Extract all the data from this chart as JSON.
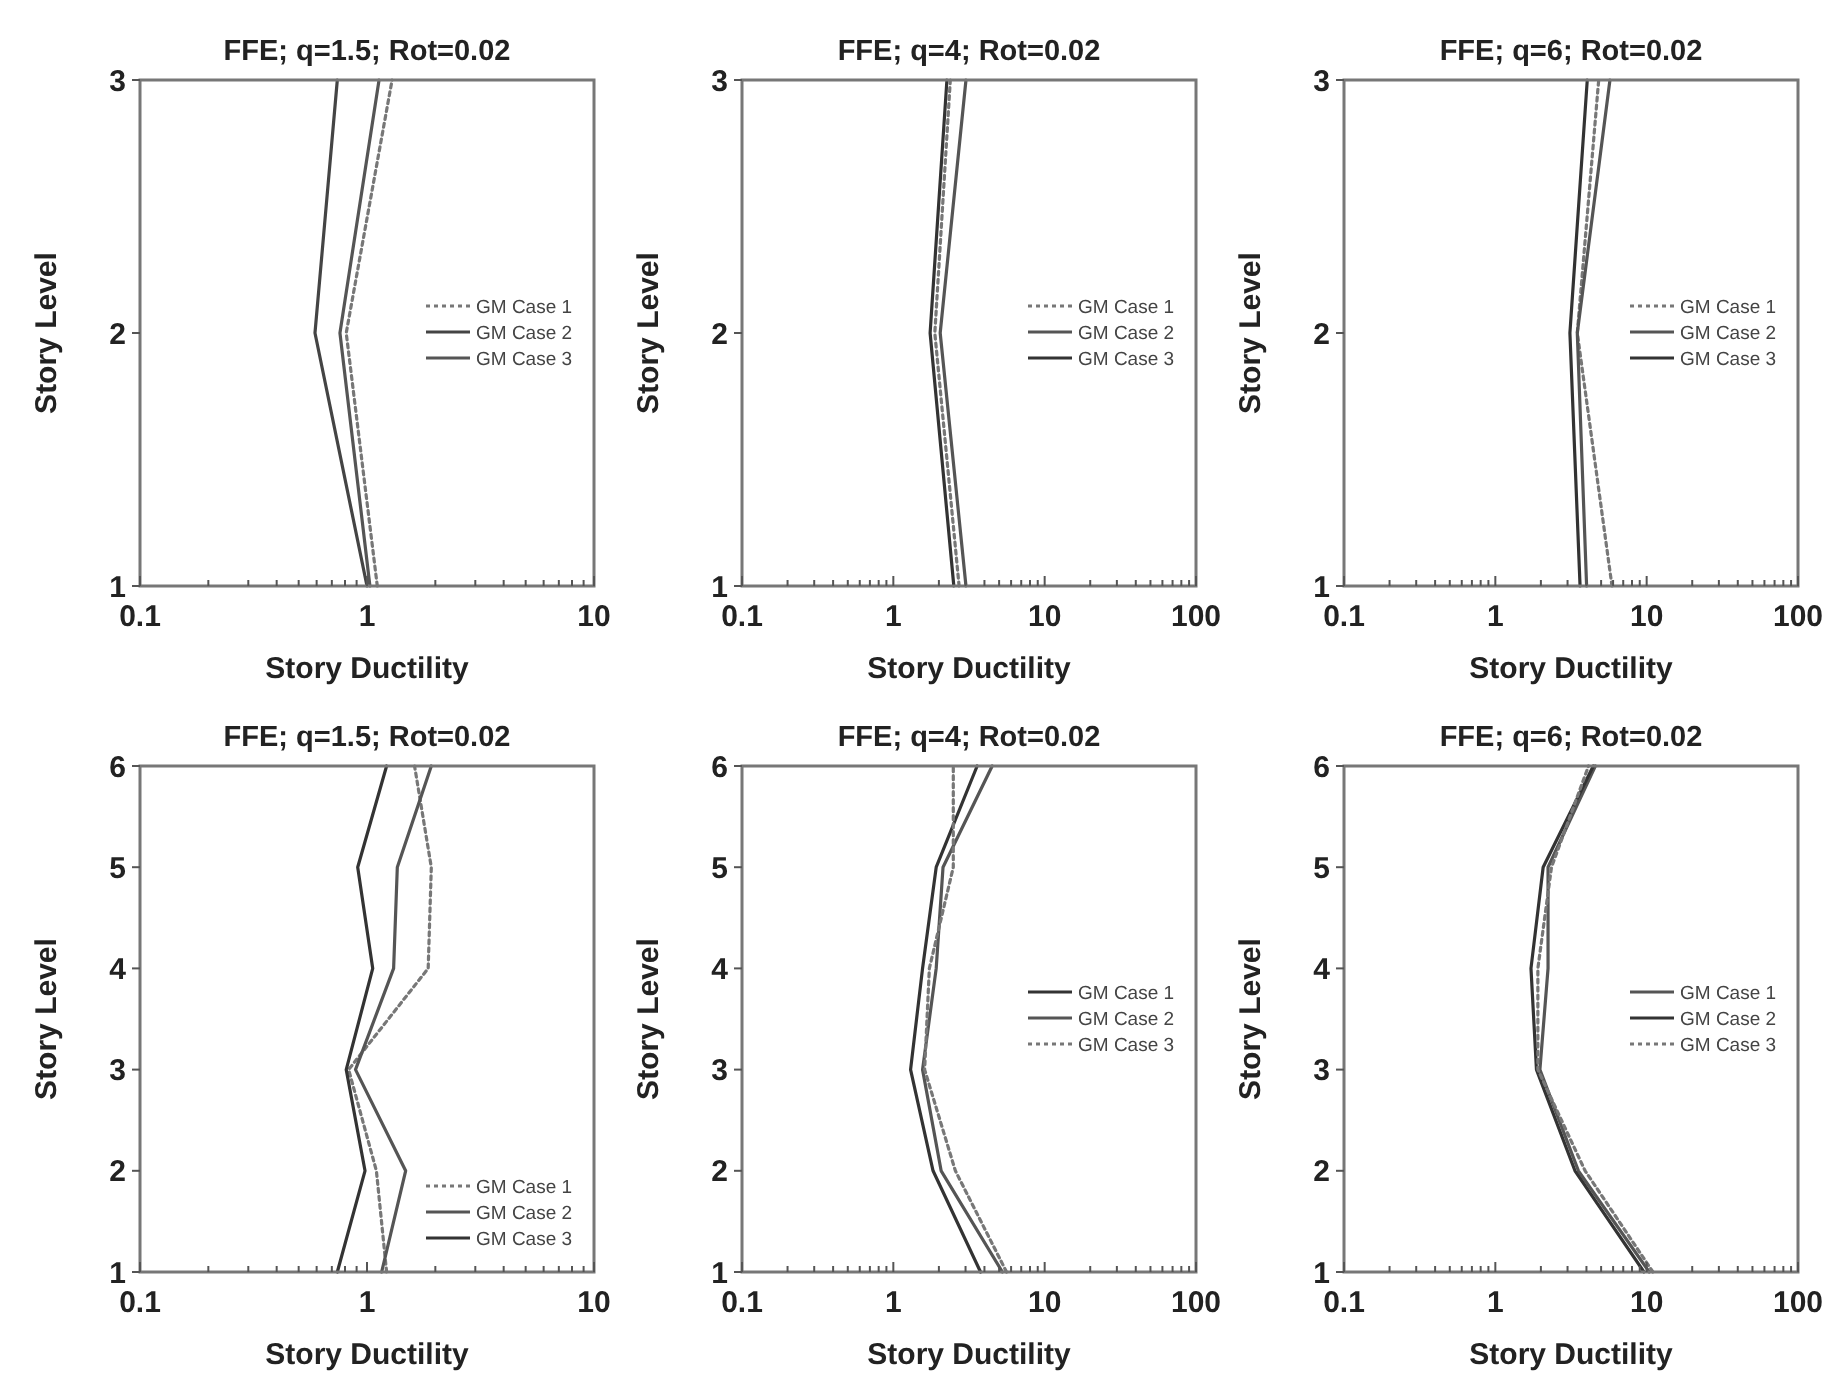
{
  "chart_data": [
    {
      "type": "line",
      "title": "FFE; q=1.5; Rot=0.02",
      "xlabel": "Story Ductility",
      "ylabel": "Story Level",
      "log": "x",
      "legend": "right",
      "grid": false,
      "xlim": [
        0.1,
        10
      ],
      "ylim": [
        1,
        3
      ],
      "yticks": [
        1,
        2,
        3
      ],
      "xticks": [
        0.1,
        {
          "value": 0.2,
          "label": null
        },
        {
          "value": 0.3,
          "label": null
        },
        {
          "value": 0.4,
          "label": null
        },
        {
          "value": 0.5,
          "label": null
        },
        {
          "value": 0.6,
          "label": null
        },
        {
          "value": 0.7,
          "label": null
        },
        {
          "value": 0.8,
          "label": null
        },
        {
          "value": 0.9,
          "label": null
        },
        1,
        {
          "value": 2,
          "label": null
        },
        {
          "value": 3,
          "label": null
        },
        {
          "value": 4,
          "label": null
        },
        {
          "value": 5,
          "label": null
        },
        {
          "value": 6,
          "label": null
        },
        {
          "value": 7,
          "label": null
        },
        {
          "value": 8,
          "label": null
        },
        {
          "value": 9,
          "label": null
        },
        10
      ],
      "series": [
        {
          "name": "GM Case 1",
          "color": "#777777",
          "line_style": "dotted",
          "x": [
            1.11,
            0.81,
            1.29
          ],
          "values": [
            1,
            2,
            3
          ]
        },
        {
          "name": "GM Case 2",
          "color": "#444444",
          "line_style": "solid",
          "x": [
            1.0,
            0.59,
            0.74
          ],
          "values": [
            1,
            2,
            3
          ]
        },
        {
          "name": "GM Case 3",
          "color": "#555555",
          "line_style": "solid",
          "x": [
            1.03,
            0.76,
            1.13
          ],
          "values": [
            1,
            2,
            3
          ]
        }
      ]
    },
    {
      "type": "line",
      "title": "FFE; q=4; Rot=0.02",
      "xlabel": "Story Ductility",
      "ylabel": "Story Level",
      "log": "x",
      "legend": "right",
      "grid": false,
      "xlim": [
        0.1,
        100
      ],
      "ylim": [
        1,
        3
      ],
      "yticks": [
        1,
        2,
        3
      ],
      "xticks": [
        0.1,
        {
          "value": 0.2,
          "label": null
        },
        {
          "value": 0.3,
          "label": null
        },
        {
          "value": 0.4,
          "label": null
        },
        {
          "value": 0.5,
          "label": null
        },
        {
          "value": 0.6,
          "label": null
        },
        {
          "value": 0.7,
          "label": null
        },
        {
          "value": 0.8,
          "label": null
        },
        {
          "value": 0.9,
          "label": null
        },
        1,
        {
          "value": 2,
          "label": null
        },
        {
          "value": 3,
          "label": null
        },
        {
          "value": 4,
          "label": null
        },
        {
          "value": 5,
          "label": null
        },
        {
          "value": 6,
          "label": null
        },
        {
          "value": 7,
          "label": null
        },
        {
          "value": 8,
          "label": null
        },
        {
          "value": 9,
          "label": null
        },
        10,
        {
          "value": 20,
          "label": null
        },
        {
          "value": 30,
          "label": null
        },
        {
          "value": 40,
          "label": null
        },
        {
          "value": 50,
          "label": null
        },
        {
          "value": 60,
          "label": null
        },
        {
          "value": 70,
          "label": null
        },
        {
          "value": 80,
          "label": null
        },
        {
          "value": 90,
          "label": null
        },
        100
      ],
      "series": [
        {
          "name": "GM Case 1",
          "color": "#777777",
          "line_style": "dotted",
          "x": [
            2.72,
            1.88,
            2.38
          ],
          "values": [
            1,
            2,
            3
          ]
        },
        {
          "name": "GM Case 2",
          "color": "#555555",
          "line_style": "solid",
          "x": [
            3.02,
            2.04,
            3.02
          ],
          "values": [
            1,
            2,
            3
          ]
        },
        {
          "name": "GM Case 3",
          "color": "#333333",
          "line_style": "solid",
          "x": [
            2.51,
            1.75,
            2.26
          ],
          "values": [
            1,
            2,
            3
          ]
        }
      ]
    },
    {
      "type": "line",
      "title": "FFE; q=6; Rot=0.02",
      "xlabel": "Story Ductility",
      "ylabel": "Story Level",
      "log": "x",
      "legend": "right",
      "grid": false,
      "xlim": [
        0.1,
        100
      ],
      "ylim": [
        1,
        3
      ],
      "yticks": [
        1,
        2,
        3
      ],
      "xticks": [
        0.1,
        {
          "value": 0.2,
          "label": null
        },
        {
          "value": 0.3,
          "label": null
        },
        {
          "value": 0.4,
          "label": null
        },
        {
          "value": 0.5,
          "label": null
        },
        {
          "value": 0.6,
          "label": null
        },
        {
          "value": 0.7,
          "label": null
        },
        {
          "value": 0.8,
          "label": null
        },
        {
          "value": 0.9,
          "label": null
        },
        1,
        {
          "value": 2,
          "label": null
        },
        {
          "value": 3,
          "label": null
        },
        {
          "value": 4,
          "label": null
        },
        {
          "value": 5,
          "label": null
        },
        {
          "value": 6,
          "label": null
        },
        {
          "value": 7,
          "label": null
        },
        {
          "value": 8,
          "label": null
        },
        {
          "value": 9,
          "label": null
        },
        10,
        {
          "value": 20,
          "label": null
        },
        {
          "value": 30,
          "label": null
        },
        {
          "value": 40,
          "label": null
        },
        {
          "value": 50,
          "label": null
        },
        {
          "value": 60,
          "label": null
        },
        {
          "value": 70,
          "label": null
        },
        {
          "value": 80,
          "label": null
        },
        {
          "value": 90,
          "label": null
        },
        100
      ],
      "series": [
        {
          "name": "GM Case 1",
          "color": "#777777",
          "line_style": "dotted",
          "x": [
            5.9,
            3.48,
            4.82
          ],
          "values": [
            1,
            2,
            3
          ]
        },
        {
          "name": "GM Case 2",
          "color": "#555555",
          "line_style": "solid",
          "x": [
            4.01,
            3.48,
            5.72
          ],
          "values": [
            1,
            2,
            3
          ]
        },
        {
          "name": "GM Case 3",
          "color": "#333333",
          "line_style": "solid",
          "x": [
            3.63,
            3.11,
            4.05
          ],
          "values": [
            1,
            2,
            3
          ]
        }
      ]
    },
    {
      "type": "line",
      "title": "FFE; q=1.5; Rot=0.02",
      "xlabel": "Story Ductility",
      "ylabel": "Story Level",
      "log": "x",
      "legend": "bottom right",
      "grid": false,
      "xlim": [
        0.1,
        10
      ],
      "ylim": [
        1,
        6
      ],
      "yticks": [
        1,
        2,
        3,
        4,
        5,
        6
      ],
      "xticks": [
        0.1,
        {
          "value": 0.2,
          "label": null
        },
        {
          "value": 0.3,
          "label": null
        },
        {
          "value": 0.4,
          "label": null
        },
        {
          "value": 0.5,
          "label": null
        },
        {
          "value": 0.6,
          "label": null
        },
        {
          "value": 0.7,
          "label": null
        },
        {
          "value": 0.8,
          "label": null
        },
        {
          "value": 0.9,
          "label": null
        },
        1,
        {
          "value": 2,
          "label": null
        },
        {
          "value": 3,
          "label": null
        },
        {
          "value": 4,
          "label": null
        },
        {
          "value": 5,
          "label": null
        },
        {
          "value": 6,
          "label": null
        },
        {
          "value": 7,
          "label": null
        },
        {
          "value": 8,
          "label": null
        },
        {
          "value": 9,
          "label": null
        },
        10
      ],
      "series": [
        {
          "name": "GM Case 1",
          "color": "#777777",
          "line_style": "dotted",
          "x": [
            1.22,
            1.1,
            0.83,
            1.86,
            1.92,
            1.62
          ],
          "values": [
            1,
            2,
            3,
            4,
            5,
            6
          ]
        },
        {
          "name": "GM Case 2",
          "color": "#555555",
          "line_style": "solid",
          "x": [
            1.16,
            1.48,
            0.89,
            1.31,
            1.36,
            1.92
          ],
          "values": [
            1,
            2,
            3,
            4,
            5,
            6
          ]
        },
        {
          "name": "GM Case 3",
          "color": "#333333",
          "line_style": "solid",
          "x": [
            0.74,
            0.98,
            0.81,
            1.06,
            0.91,
            1.22
          ],
          "values": [
            1,
            2,
            3,
            4,
            5,
            6
          ]
        }
      ]
    },
    {
      "type": "line",
      "title": "FFE; q=4; Rot=0.02",
      "xlabel": "Story Ductility",
      "ylabel": "Story Level",
      "log": "x",
      "legend": "right",
      "grid": false,
      "xlim": [
        0.1,
        100
      ],
      "ylim": [
        1,
        6
      ],
      "yticks": [
        1,
        2,
        3,
        4,
        5,
        6
      ],
      "xticks": [
        0.1,
        {
          "value": 0.2,
          "label": null
        },
        {
          "value": 0.3,
          "label": null
        },
        {
          "value": 0.4,
          "label": null
        },
        {
          "value": 0.5,
          "label": null
        },
        {
          "value": 0.6,
          "label": null
        },
        {
          "value": 0.7,
          "label": null
        },
        {
          "value": 0.8,
          "label": null
        },
        {
          "value": 0.9,
          "label": null
        },
        1,
        {
          "value": 2,
          "label": null
        },
        {
          "value": 3,
          "label": null
        },
        {
          "value": 4,
          "label": null
        },
        {
          "value": 5,
          "label": null
        },
        {
          "value": 6,
          "label": null
        },
        {
          "value": 7,
          "label": null
        },
        {
          "value": 8,
          "label": null
        },
        {
          "value": 9,
          "label": null
        },
        10,
        {
          "value": 20,
          "label": null
        },
        {
          "value": 30,
          "label": null
        },
        {
          "value": 40,
          "label": null
        },
        {
          "value": 50,
          "label": null
        },
        {
          "value": 60,
          "label": null
        },
        {
          "value": 70,
          "label": null
        },
        {
          "value": 80,
          "label": null
        },
        {
          "value": 90,
          "label": null
        },
        100
      ],
      "series": [
        {
          "name": "GM Case 1",
          "color": "#333333",
          "line_style": "solid",
          "x": [
            3.77,
            1.83,
            1.3,
            1.56,
            1.92,
            3.58
          ],
          "values": [
            1,
            2,
            3,
            4,
            5,
            6
          ]
        },
        {
          "name": "GM Case 2",
          "color": "#555555",
          "line_style": "solid",
          "x": [
            5.26,
            2.07,
            1.56,
            1.92,
            2.13,
            4.5
          ],
          "values": [
            1,
            2,
            3,
            4,
            5,
            6
          ]
        },
        {
          "name": "GM Case 3",
          "color": "#777777",
          "line_style": "dotted",
          "x": [
            5.6,
            2.57,
            1.61,
            1.73,
            2.49,
            2.49
          ],
          "values": [
            1,
            2,
            3,
            4,
            5,
            6
          ]
        }
      ]
    },
    {
      "type": "line",
      "title": "FFE; q=6; Rot=0.02",
      "xlabel": "Story Ductility",
      "ylabel": "Story Level",
      "log": "x",
      "legend": "right",
      "grid": false,
      "xlim": [
        0.1,
        100
      ],
      "ylim": [
        1,
        6
      ],
      "yticks": [
        1,
        2,
        3,
        4,
        5,
        6
      ],
      "xticks": [
        0.1,
        {
          "value": 0.2,
          "label": null
        },
        {
          "value": 0.3,
          "label": null
        },
        {
          "value": 0.4,
          "label": null
        },
        {
          "value": 0.5,
          "label": null
        },
        {
          "value": 0.6,
          "label": null
        },
        {
          "value": 0.7,
          "label": null
        },
        {
          "value": 0.8,
          "label": null
        },
        {
          "value": 0.9,
          "label": null
        },
        1,
        {
          "value": 2,
          "label": null
        },
        {
          "value": 3,
          "label": null
        },
        {
          "value": 4,
          "label": null
        },
        {
          "value": 5,
          "label": null
        },
        {
          "value": 6,
          "label": null
        },
        {
          "value": 7,
          "label": null
        },
        {
          "value": 8,
          "label": null
        },
        {
          "value": 9,
          "label": null
        },
        10,
        {
          "value": 20,
          "label": null
        },
        {
          "value": 30,
          "label": null
        },
        {
          "value": 40,
          "label": null
        },
        {
          "value": 50,
          "label": null
        },
        {
          "value": 60,
          "label": null
        },
        {
          "value": 70,
          "label": null
        },
        {
          "value": 80,
          "label": null
        },
        {
          "value": 90,
          "label": null
        },
        100
      ],
      "series": [
        {
          "name": "GM Case 1",
          "color": "#555555",
          "line_style": "solid",
          "x": [
            10.4,
            3.54,
            1.97,
            2.23,
            2.23,
            4.58
          ],
          "values": [
            1,
            2,
            3,
            4,
            5,
            6
          ]
        },
        {
          "name": "GM Case 2",
          "color": "#333333",
          "line_style": "solid",
          "x": [
            9.6,
            3.36,
            1.87,
            1.72,
            2.07,
            4.44
          ],
          "values": [
            1,
            2,
            3,
            4,
            5,
            6
          ]
        },
        {
          "name": "GM Case 3",
          "color": "#777777",
          "line_style": "dotted",
          "x": [
            11.0,
            3.92,
            1.91,
            1.91,
            2.35,
            4.13
          ],
          "values": [
            1,
            2,
            3,
            4,
            5,
            6
          ]
        }
      ]
    }
  ]
}
